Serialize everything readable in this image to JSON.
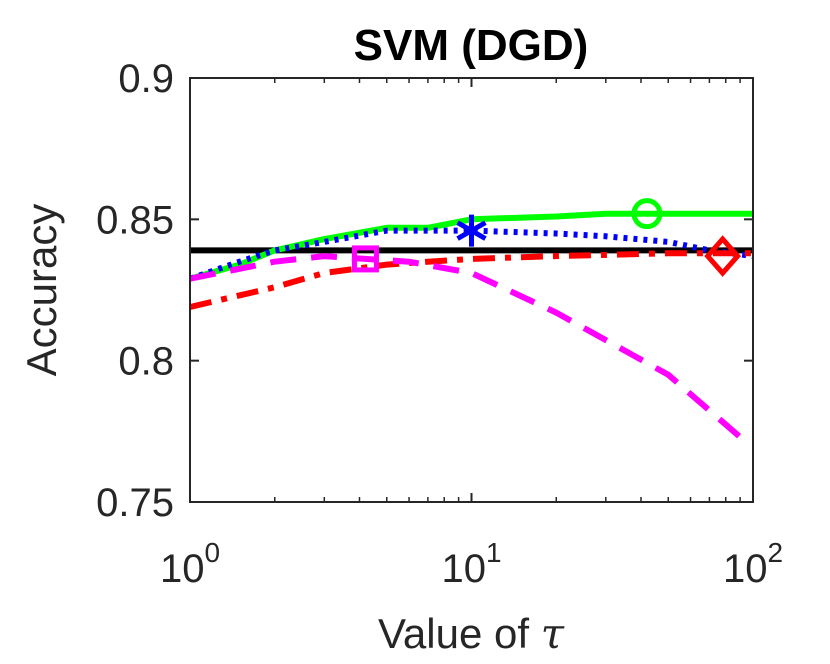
{
  "chart_data": {
    "type": "line",
    "title": "SVM (DGD)",
    "xlabel_prefix": "Value of ",
    "xlabel_symbol": "τ",
    "ylabel": "Accuracy",
    "xscale": "log",
    "xlim": [
      1,
      100
    ],
    "ylim": [
      0.75,
      0.9
    ],
    "x_ticks": [
      {
        "base": "10",
        "exp": "0",
        "value": 1
      },
      {
        "base": "10",
        "exp": "1",
        "value": 10
      },
      {
        "base": "10",
        "exp": "2",
        "value": 100
      }
    ],
    "y_ticks": [
      {
        "label": "0.75",
        "value": 0.75
      },
      {
        "label": "0.8",
        "value": 0.8
      },
      {
        "label": "0.85",
        "value": 0.85
      },
      {
        "label": "0.9",
        "value": 0.9
      }
    ],
    "grid": false,
    "series": [
      {
        "name": "baseline",
        "color": "#000000",
        "dash": "solid",
        "marker": "none",
        "x": [
          1,
          100
        ],
        "y": [
          0.839,
          0.839
        ]
      },
      {
        "name": "green-circle",
        "color": "#00ff00",
        "dash": "solid",
        "marker": "circle",
        "marker_at": [
          42,
          0.852
        ],
        "x": [
          1,
          1.5,
          2,
          3,
          5,
          7,
          10,
          20,
          30,
          50,
          100
        ],
        "y": [
          0.829,
          0.834,
          0.839,
          0.843,
          0.847,
          0.847,
          0.85,
          0.851,
          0.852,
          0.852,
          0.852
        ]
      },
      {
        "name": "blue-asterisk",
        "color": "#0000ff",
        "dash": "dotted",
        "marker": "asterisk",
        "marker_at": [
          10,
          0.846
        ],
        "x": [
          1,
          1.5,
          2,
          3,
          5,
          7,
          10,
          20,
          30,
          50,
          70,
          100
        ],
        "y": [
          0.829,
          0.835,
          0.839,
          0.842,
          0.846,
          0.846,
          0.846,
          0.845,
          0.844,
          0.842,
          0.839,
          0.837
        ]
      },
      {
        "name": "red-diamond",
        "color": "#ff0000",
        "dash": "dashdot",
        "marker": "diamond",
        "marker_at": [
          78,
          0.837
        ],
        "x": [
          1,
          2,
          3,
          5,
          7,
          10,
          20,
          50,
          100
        ],
        "y": [
          0.819,
          0.826,
          0.831,
          0.834,
          0.835,
          0.836,
          0.837,
          0.838,
          0.838
        ]
      },
      {
        "name": "magenta-square",
        "color": "#ff00ff",
        "dash": "dashed",
        "marker": "square",
        "marker_at": [
          4.2,
          0.836
        ],
        "x": [
          1,
          2,
          3,
          4.2,
          6,
          10,
          20,
          50,
          90
        ],
        "y": [
          0.829,
          0.835,
          0.837,
          0.836,
          0.835,
          0.831,
          0.817,
          0.795,
          0.773
        ]
      }
    ]
  }
}
